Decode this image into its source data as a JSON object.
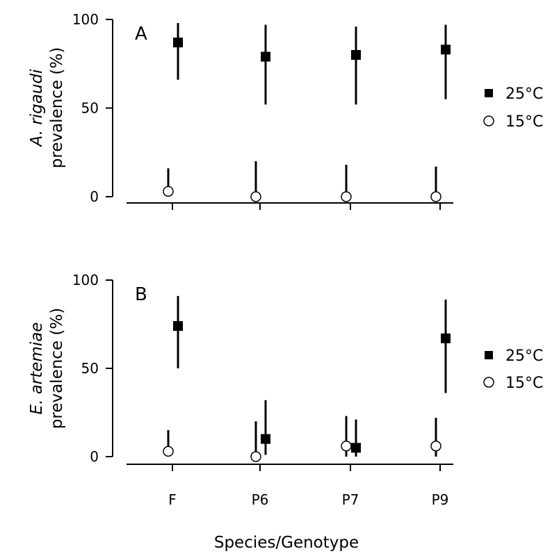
{
  "chart_data": [
    {
      "panel_label": "A",
      "type": "scatter",
      "ylabel": [
        {
          "text": "A. rigaudi",
          "italic": true
        },
        {
          "text": " prevalence (%)",
          "italic": false
        }
      ],
      "ylim": [
        0,
        100
      ],
      "yticks": [
        "0",
        "50",
        "100"
      ],
      "categories": [
        "F",
        "P6",
        "P7",
        "P9"
      ],
      "series": [
        {
          "name": "25°C",
          "marker": "filled-square",
          "values": [
            87,
            79,
            80,
            83
          ],
          "lower": [
            66,
            52,
            52,
            55
          ],
          "upper": [
            98,
            97,
            96,
            97
          ]
        },
        {
          "name": "15°C",
          "marker": "open-circle",
          "values": [
            3,
            0,
            0,
            0
          ],
          "lower": [
            0,
            0,
            0,
            0
          ],
          "upper": [
            16,
            20,
            18,
            17
          ]
        }
      ],
      "legend": {
        "position": "right",
        "items": [
          "25°C",
          "15°C"
        ]
      }
    },
    {
      "panel_label": "B",
      "type": "scatter",
      "ylabel": [
        {
          "text": "E. artemiae",
          "italic": true
        },
        {
          "text": " prevalence (%)",
          "italic": false
        }
      ],
      "ylim": [
        0,
        100
      ],
      "yticks": [
        "0",
        "50",
        "100"
      ],
      "categories": [
        "F",
        "P6",
        "P7",
        "P9"
      ],
      "series": [
        {
          "name": "25°C",
          "marker": "filled-square",
          "values": [
            74,
            10,
            5,
            67
          ],
          "lower": [
            50,
            1,
            0,
            36
          ],
          "upper": [
            91,
            32,
            21,
            89
          ]
        },
        {
          "name": "15°C",
          "marker": "open-circle",
          "values": [
            3,
            0,
            6,
            6
          ],
          "lower": [
            0,
            0,
            0,
            0
          ],
          "upper": [
            15,
            20,
            23,
            22
          ]
        }
      ],
      "legend": {
        "position": "right",
        "items": [
          "25°C",
          "15°C"
        ]
      }
    }
  ],
  "xlabel": "Species/Genotype"
}
